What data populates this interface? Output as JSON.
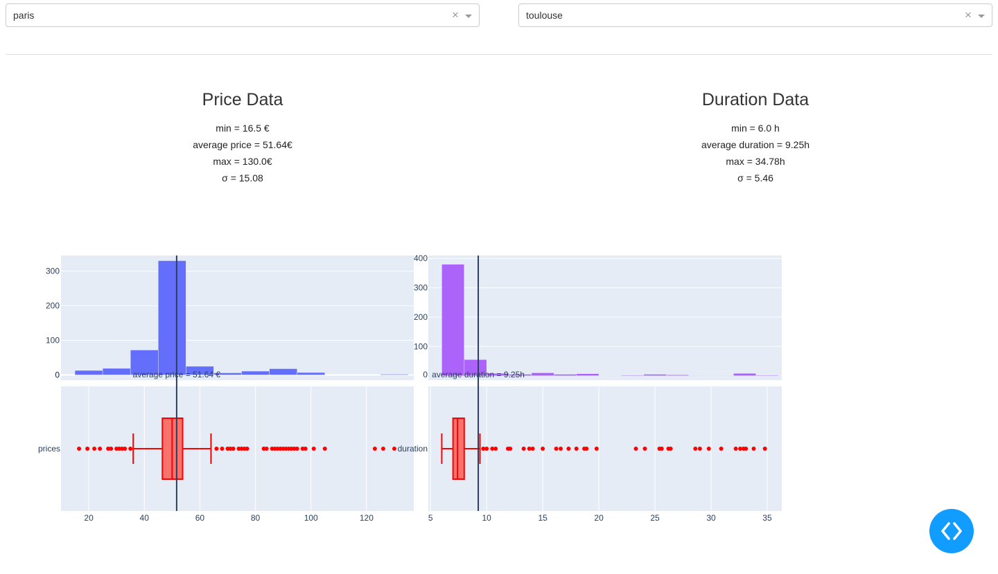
{
  "dropdowns": {
    "origin": {
      "value": "paris",
      "clear_icon": "×"
    },
    "destination": {
      "value": "toulouse",
      "clear_icon": "×"
    }
  },
  "price_stats": {
    "title": "Price Data",
    "min": "min = 16.5 €",
    "average": "average price = 51.64€",
    "max": "max = 130.0€",
    "sigma": "σ = 15.08"
  },
  "duration_stats": {
    "title": "Duration Data",
    "min": "min = 6.0 h",
    "average": "average duration = 9.25h",
    "max": "max = 34.78h",
    "sigma": "σ = 5.46"
  },
  "colors": {
    "plot_bg": "#e5ecf6",
    "price_hist": "#636efa",
    "duration_hist": "#ab63fa",
    "box": "#ff0000",
    "box_fill": "#f9736e",
    "vline": "#2a3f5f",
    "code_button": "#119dff"
  },
  "chart_data": [
    {
      "type": "histogram",
      "name": "price-histogram",
      "bin_edges": [
        15,
        25,
        35,
        45,
        55,
        65,
        75,
        85,
        95,
        105,
        115,
        125,
        135
      ],
      "values": [
        13,
        19,
        72,
        330,
        25,
        6,
        11,
        18,
        7,
        0,
        0,
        2
      ],
      "yticks": [
        0,
        100,
        200,
        300
      ],
      "ylim": [
        -15,
        345
      ],
      "vline": {
        "x": 51.64,
        "label": "average price = 51.64 €"
      }
    },
    {
      "type": "box",
      "name": "price-box",
      "category": "prices",
      "min_whisker": 36,
      "q1": 46.5,
      "median": 50,
      "q3": 53.8,
      "max_whisker": 64,
      "outliers": [
        16.5,
        19.5,
        22,
        24,
        27,
        28,
        30,
        31,
        32,
        33,
        35,
        66,
        68,
        70,
        71,
        72,
        74,
        75,
        76,
        77,
        83,
        84,
        86,
        87,
        88,
        89,
        90,
        91,
        92,
        93,
        94,
        95,
        97,
        98,
        101,
        105,
        123,
        126,
        130
      ],
      "xticks": [
        20,
        40,
        60,
        80,
        100,
        120
      ],
      "xlim": [
        10,
        137
      ],
      "vline": 51.64
    },
    {
      "type": "histogram",
      "name": "duration-histogram",
      "bin_edges": [
        6,
        8,
        10,
        12,
        14,
        16,
        18,
        20,
        22,
        24,
        26,
        28,
        30,
        32,
        34,
        36
      ],
      "values": [
        380,
        55,
        8,
        5,
        10,
        5,
        7,
        0,
        2,
        5,
        3,
        1,
        1,
        8,
        2
      ],
      "yticks": [
        100,
        200,
        300,
        400
      ],
      "ylim": [
        -15,
        410
      ],
      "vline": {
        "x": 9.25,
        "label": "average duration = 9.25h"
      }
    },
    {
      "type": "box",
      "name": "duration-box",
      "category": "duration",
      "min_whisker": 6,
      "q1": 7,
      "median": 7.4,
      "q3": 8.0,
      "max_whisker": 9.4,
      "outliers": [
        9.7,
        10,
        10.5,
        10.8,
        11.9,
        12.1,
        13.3,
        13.8,
        14.1,
        15,
        16.2,
        16.6,
        17.3,
        18,
        18.7,
        18.9,
        19.8,
        23.3,
        24.1,
        25.4,
        25.6,
        26.2,
        26.4,
        28.6,
        29,
        29.8,
        30.9,
        32.2,
        32.6,
        32.9,
        33.1,
        33.8,
        34.8
      ],
      "xticks": [
        5,
        10,
        15,
        20,
        25,
        30,
        35
      ],
      "xlim": [
        4.8,
        36.3
      ],
      "vline": 9.25
    }
  ]
}
